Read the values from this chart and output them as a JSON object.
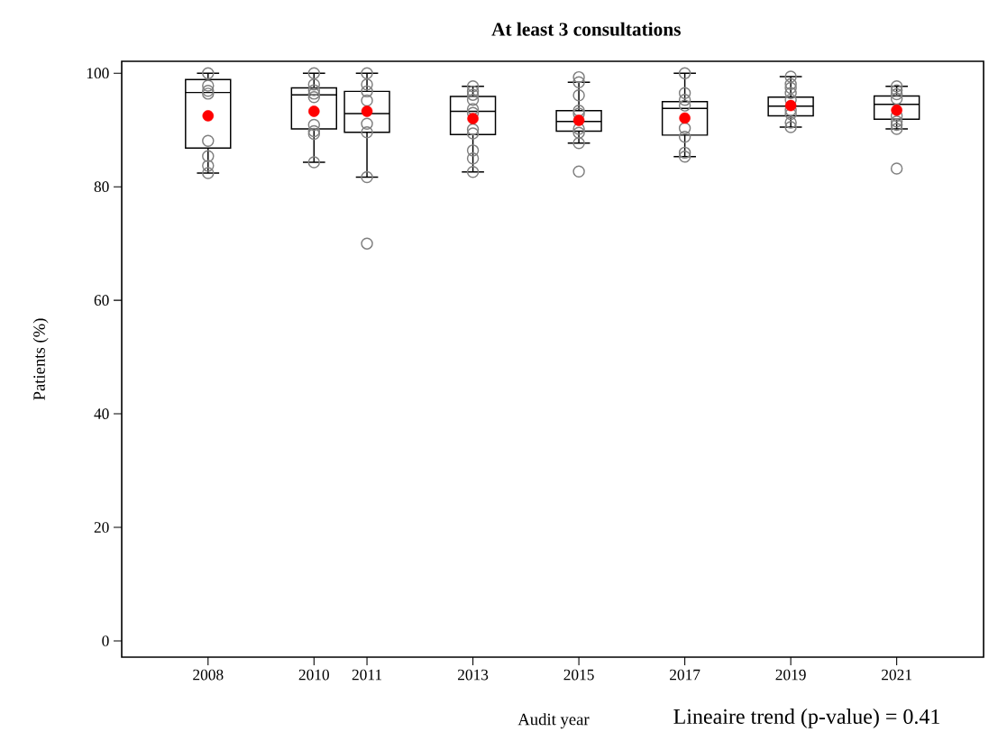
{
  "chart_data": {
    "type": "box",
    "title": "At least 3 consultations",
    "xlabel": "Audit year",
    "ylabel": "Patients (%)",
    "x": [
      2008,
      2010,
      2011,
      2013,
      2015,
      2017,
      2019,
      2021
    ],
    "boxes": [
      {
        "low": 82.4,
        "q1": 86.8,
        "median": 96.6,
        "q3": 98.9,
        "high": 100,
        "mean": 92.5
      },
      {
        "low": 84.3,
        "q1": 90.2,
        "median": 96.2,
        "q3": 97.4,
        "high": 100,
        "mean": 93.3
      },
      {
        "low": 81.7,
        "q1": 89.6,
        "median": 92.9,
        "q3": 96.8,
        "high": 100,
        "mean": 93.3
      },
      {
        "low": 82.6,
        "q1": 89.2,
        "median": 93.3,
        "q3": 95.9,
        "high": 97.7,
        "mean": 92.0
      },
      {
        "low": 87.7,
        "q1": 89.8,
        "median": 91.5,
        "q3": 93.4,
        "high": 98.4,
        "mean": 91.7
      },
      {
        "low": 85.3,
        "q1": 89.1,
        "median": 93.8,
        "q3": 95.0,
        "high": 100,
        "mean": 92.1
      },
      {
        "low": 90.5,
        "q1": 92.5,
        "median": 94.2,
        "q3": 95.8,
        "high": 99.4,
        "mean": 94.3
      },
      {
        "low": 90.2,
        "q1": 91.9,
        "median": 94.5,
        "q3": 96.0,
        "high": 97.7,
        "mean": 93.5
      }
    ],
    "series": [
      {
        "type": "scatter",
        "color": "#808080",
        "marker": "circle",
        "x": [
          2008,
          2008,
          2008,
          2008,
          2008,
          2008,
          2008,
          2008,
          2010,
          2010,
          2010,
          2010,
          2010,
          2010,
          2010,
          2010,
          2010,
          2011,
          2011,
          2011,
          2011,
          2011,
          2011,
          2011,
          2011,
          2013,
          2013,
          2013,
          2013,
          2013,
          2013,
          2013,
          2013,
          2013,
          2013,
          2013,
          2015,
          2015,
          2015,
          2015,
          2015,
          2015,
          2015,
          2015,
          2015,
          2017,
          2017,
          2017,
          2017,
          2017,
          2017,
          2017,
          2017,
          2019,
          2019,
          2019,
          2019,
          2019,
          2019,
          2019,
          2019,
          2019,
          2021,
          2021,
          2021,
          2021,
          2021,
          2021,
          2021,
          2021,
          2021
        ],
        "values": [
          100,
          97.8,
          96.9,
          96.4,
          88.1,
          85.4,
          83.7,
          82.4,
          100,
          98.0,
          97.0,
          96.4,
          95.8,
          90.9,
          89.8,
          89.3,
          84.3,
          100,
          98.0,
          96.8,
          95.2,
          91.1,
          89.6,
          81.7,
          70.0,
          97.7,
          96.8,
          96.2,
          95.3,
          93.7,
          93.0,
          90.1,
          89.4,
          86.4,
          85.0,
          82.6,
          99.3,
          98.4,
          96.1,
          93.4,
          92.9,
          90.2,
          89.5,
          87.7,
          82.7,
          100,
          96.5,
          95.3,
          94.3,
          90.3,
          88.8,
          86.0,
          85.3,
          99.4,
          98.1,
          97.4,
          96.5,
          95.3,
          93.5,
          92.8,
          91.3,
          90.5,
          97.7,
          97.0,
          96.3,
          95.5,
          92.5,
          91.5,
          90.9,
          90.2,
          83.2
        ]
      }
    ],
    "xlim": [
      2006.37,
      2022.64
    ],
    "ylim": [
      -2.86,
      102.1
    ],
    "xticks": [
      2008,
      2010,
      2011,
      2013,
      2015,
      2017,
      2019,
      2021
    ],
    "yticks": [
      0,
      20,
      40,
      60,
      80,
      100
    ],
    "annotations": [
      "Lineaire trend (p-value) = 0.41"
    ]
  }
}
